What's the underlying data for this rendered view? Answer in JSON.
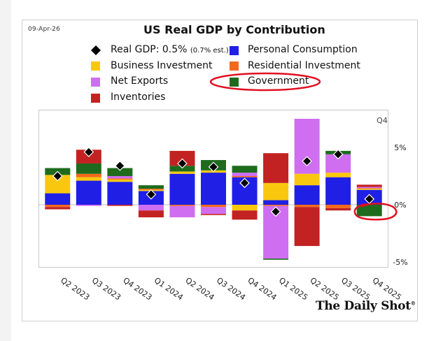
{
  "date": "09-Apr-26",
  "title": "US Real GDP by Contribution",
  "legend": {
    "real_gdp": "Real GDP: 0.5%",
    "real_gdp_note": "(0.7% est.)",
    "personal_consumption": "Personal Consumption",
    "business_investment": "Business Investment",
    "residential_investment": "Residential Investment",
    "net_exports": "Net Exports",
    "government": "Government",
    "inventories": "Inventories"
  },
  "corner_label": "Q4",
  "brand": "The Daily Shot",
  "brand_mark": "®",
  "colors": {
    "personal_consumption": "#1f1fe6",
    "business_investment": "#f9c80e",
    "residential_investment": "#f26a1b",
    "net_exports": "#cf6ef0",
    "government": "#1e6b1e",
    "inventories": "#c32222",
    "annotation": "#e01020"
  },
  "chart_data": {
    "type": "bar",
    "stacked": true,
    "categories": [
      "Q2 2023",
      "Q3 2023",
      "Q4 2023",
      "Q1 2024",
      "Q2 2024",
      "Q3 2024",
      "Q4 2024",
      "Q1 2025",
      "Q2 2025",
      "Q3 2025",
      "Q4 2025"
    ],
    "ylim": [
      -5.5,
      8
    ],
    "yticks": [
      5,
      0,
      -5
    ],
    "ytick_labels": [
      "5%",
      "0%",
      "-5%"
    ],
    "series": [
      {
        "name": "Personal Consumption",
        "key": "personal_consumption",
        "values": [
          1.0,
          2.1,
          2.0,
          1.2,
          2.7,
          2.8,
          2.4,
          0.4,
          1.7,
          2.4,
          1.3
        ]
      },
      {
        "name": "Business Investment",
        "key": "business_investment",
        "values": [
          1.6,
          0.3,
          0.2,
          0.1,
          0.2,
          0.2,
          -0.5,
          1.5,
          1.0,
          0.4,
          0.1
        ]
      },
      {
        "name": "Residential Investment",
        "key": "residential_investment",
        "values": [
          -0.2,
          0.3,
          0.1,
          0.1,
          -0.1,
          -0.2,
          0.1,
          -0.1,
          -0.2,
          -0.3,
          0.05
        ]
      },
      {
        "name": "Net Exports",
        "key": "net_exports",
        "values": [
          0.0,
          -0.1,
          0.2,
          -0.5,
          -1.0,
          -0.6,
          0.3,
          -4.6,
          4.8,
          1.6,
          0.1
        ]
      },
      {
        "name": "Government",
        "key": "government",
        "values": [
          0.6,
          0.9,
          0.7,
          0.3,
          0.5,
          0.9,
          0.6,
          -0.1,
          0.0,
          0.3,
          -1.0
        ]
      },
      {
        "name": "Inventories",
        "key": "inventories",
        "values": [
          -0.2,
          1.2,
          -0.1,
          -0.6,
          1.3,
          -0.1,
          -0.8,
          2.6,
          -3.4,
          -0.2,
          0.2
        ]
      }
    ],
    "real_gdp": {
      "name": "Real GDP",
      "values": [
        2.5,
        4.6,
        3.4,
        0.9,
        3.6,
        3.3,
        1.9,
        -0.6,
        3.8,
        4.4,
        0.5
      ]
    }
  }
}
